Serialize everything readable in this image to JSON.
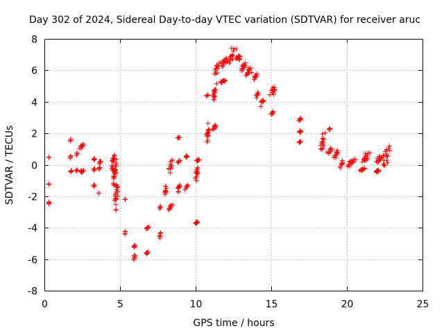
{
  "chart_data": {
    "type": "scatter",
    "title": "Day 302 of 2024, Sidereal Day-to-day VTEC variation (SDTVAR) for receiver aruc",
    "xlabel": "GPS time / hours",
    "ylabel": "SDTVAR / TECUs",
    "xlim": [
      0,
      25
    ],
    "ylim": [
      -8,
      8
    ],
    "xticks": [
      0,
      5,
      10,
      15,
      20,
      25
    ],
    "yticks": [
      -8,
      -6,
      -4,
      -2,
      0,
      2,
      4,
      6,
      8
    ],
    "grid": true,
    "marker": "+",
    "color": "#ff0000",
    "series": [
      {
        "name": "SDTVAR",
        "clusters": [
          {
            "x": [
              0.3,
              0.3
            ],
            "y": [
              -2.6,
              -2.3
            ]
          },
          {
            "x": [
              0.3,
              0.3
            ],
            "y": [
              -1.25,
              -1.2
            ]
          },
          {
            "x": [
              0.3,
              0.3
            ],
            "y": [
              0.45,
              0.5
            ]
          },
          {
            "x": [
              1.7,
              1.75
            ],
            "y": [
              1.5,
              1.65
            ]
          },
          {
            "x": [
              1.7,
              1.75
            ],
            "y": [
              0.4,
              0.6
            ]
          },
          {
            "x": [
              1.7,
              1.8
            ],
            "y": [
              -0.5,
              -0.3
            ]
          },
          {
            "x": [
              2.1,
              2.2
            ],
            "y": [
              -0.4,
              -0.3
            ]
          },
          {
            "x": [
              2.1,
              2.2
            ],
            "y": [
              0.55,
              0.8
            ]
          },
          {
            "x": [
              2.3,
              2.65
            ],
            "y": [
              -0.5,
              -0.35
            ]
          },
          {
            "x": [
              2.3,
              2.65
            ],
            "y": [
              1.0,
              1.4
            ]
          },
          {
            "x": [
              3.2,
              3.35
            ],
            "y": [
              -1.45,
              -1.2
            ]
          },
          {
            "x": [
              3.2,
              3.35
            ],
            "y": [
              -0.4,
              -0.2
            ]
          },
          {
            "x": [
              3.2,
              3.35
            ],
            "y": [
              0.25,
              0.45
            ]
          },
          {
            "x": [
              3.6,
              3.6
            ],
            "y": [
              -1.8,
              -1.8
            ]
          },
          {
            "x": [
              3.6,
              3.7
            ],
            "y": [
              -0.3,
              -0.1
            ]
          },
          {
            "x": [
              3.6,
              3.8
            ],
            "y": [
              0.05,
              0.3
            ]
          },
          {
            "x": [
              4.4,
              4.7
            ],
            "y": [
              -0.6,
              1.0
            ]
          },
          {
            "x": [
              4.5,
              4.8
            ],
            "y": [
              -1.5,
              0.5
            ]
          },
          {
            "x": [
              4.6,
              4.9
            ],
            "y": [
              -2.9,
              -1.0
            ]
          },
          {
            "x": [
              5.3,
              5.35
            ],
            "y": [
              -4.5,
              -4.2
            ]
          },
          {
            "x": [
              5.3,
              5.35
            ],
            "y": [
              -2.2,
              -2.2
            ]
          },
          {
            "x": [
              5.9,
              6.0
            ],
            "y": [
              -6.1,
              -5.6
            ]
          },
          {
            "x": [
              5.9,
              6.0
            ],
            "y": [
              -5.3,
              -5.0
            ]
          },
          {
            "x": [
              6.7,
              6.9
            ],
            "y": [
              -5.7,
              -5.5
            ]
          },
          {
            "x": [
              6.7,
              6.9
            ],
            "y": [
              -4.1,
              -3.9
            ]
          },
          {
            "x": [
              7.6,
              7.7
            ],
            "y": [
              -4.7,
              -4.2
            ]
          },
          {
            "x": [
              7.6,
              7.7
            ],
            "y": [
              -2.8,
              -2.6
            ]
          },
          {
            "x": [
              7.9,
              8.1
            ],
            "y": [
              -2.1,
              -1.2
            ]
          },
          {
            "x": [
              8.2,
              8.5
            ],
            "y": [
              -2.9,
              -2.5
            ]
          },
          {
            "x": [
              8.2,
              8.5
            ],
            "y": [
              -0.6,
              0.4
            ]
          },
          {
            "x": [
              8.8,
              8.95
            ],
            "y": [
              1.7,
              1.75
            ]
          },
          {
            "x": [
              8.8,
              9.0
            ],
            "y": [
              0.1,
              0.3
            ]
          },
          {
            "x": [
              8.8,
              9.0
            ],
            "y": [
              -1.8,
              -1.1
            ]
          },
          {
            "x": [
              9.3,
              9.5
            ],
            "y": [
              -1.6,
              -1.2
            ]
          },
          {
            "x": [
              9.3,
              9.5
            ],
            "y": [
              0.45,
              0.6
            ]
          },
          {
            "x": [
              9.95,
              10.2
            ],
            "y": [
              -3.75,
              -3.6
            ]
          },
          {
            "x": [
              9.95,
              10.2
            ],
            "y": [
              -1.2,
              0.0
            ]
          },
          {
            "x": [
              10.0,
              10.3
            ],
            "y": [
              0.2,
              0.4
            ]
          },
          {
            "x": [
              10.7,
              10.85
            ],
            "y": [
              4.35,
              4.45
            ]
          },
          {
            "x": [
              10.7,
              10.9
            ],
            "y": [
              1.3,
              2.7
            ]
          },
          {
            "x": [
              11.1,
              11.4
            ],
            "y": [
              2.2,
              2.6
            ]
          },
          {
            "x": [
              11.1,
              11.4
            ],
            "y": [
              3.8,
              5.2
            ]
          },
          {
            "x": [
              11.2,
              11.6
            ],
            "y": [
              5.6,
              6.6
            ]
          },
          {
            "x": [
              11.6,
              12.0
            ],
            "y": [
              5.2,
              5.4
            ]
          },
          {
            "x": [
              11.6,
              12.2
            ],
            "y": [
              6.2,
              6.8
            ]
          },
          {
            "x": [
              12.1,
              12.7
            ],
            "y": [
              6.4,
              7.6
            ]
          },
          {
            "x": [
              12.6,
              13.1
            ],
            "y": [
              6.6,
              7.0
            ]
          },
          {
            "x": [
              12.9,
              13.4
            ],
            "y": [
              5.9,
              6.6
            ]
          },
          {
            "x": [
              13.3,
              13.8
            ],
            "y": [
              5.6,
              6.2
            ]
          },
          {
            "x": [
              13.8,
              14.1
            ],
            "y": [
              5.4,
              5.8
            ]
          },
          {
            "x": [
              13.9,
              14.2
            ],
            "y": [
              4.2,
              4.7
            ]
          },
          {
            "x": [
              14.3,
              14.5
            ],
            "y": [
              3.7,
              4.3
            ]
          },
          {
            "x": [
              14.9,
              15.2
            ],
            "y": [
              3.1,
              3.4
            ]
          },
          {
            "x": [
              14.9,
              15.35
            ],
            "y": [
              4.4,
              5.0
            ]
          },
          {
            "x": [
              16.8,
              17.0
            ],
            "y": [
              1.4,
              1.5
            ]
          },
          {
            "x": [
              16.8,
              17.0
            ],
            "y": [
              2.0,
              2.2
            ]
          },
          {
            "x": [
              16.8,
              17.0
            ],
            "y": [
              2.8,
              3.0
            ]
          },
          {
            "x": [
              18.2,
              18.6
            ],
            "y": [
              0.8,
              2.1
            ]
          },
          {
            "x": [
              18.6,
              19.1
            ],
            "y": [
              0.7,
              1.1
            ]
          },
          {
            "x": [
              18.8,
              18.9
            ],
            "y": [
              2.2,
              2.35
            ]
          },
          {
            "x": [
              19.1,
              19.5
            ],
            "y": [
              0.4,
              1.0
            ]
          },
          {
            "x": [
              19.5,
              19.8
            ],
            "y": [
              -0.35,
              0.3
            ]
          },
          {
            "x": [
              20.0,
              20.6
            ],
            "y": [
              -0.3,
              0.55
            ]
          },
          {
            "x": [
              20.8,
              21.2
            ],
            "y": [
              -0.4,
              -0.2
            ]
          },
          {
            "x": [
              20.9,
              21.6
            ],
            "y": [
              0.1,
              0.8
            ]
          },
          {
            "x": [
              21.8,
              22.2
            ],
            "y": [
              -0.5,
              -0.3
            ]
          },
          {
            "x": [
              21.9,
              22.4
            ],
            "y": [
              0.1,
              0.6
            ]
          },
          {
            "x": [
              22.3,
              22.9
            ],
            "y": [
              -0.2,
              1.4
            ]
          }
        ]
      }
    ]
  }
}
